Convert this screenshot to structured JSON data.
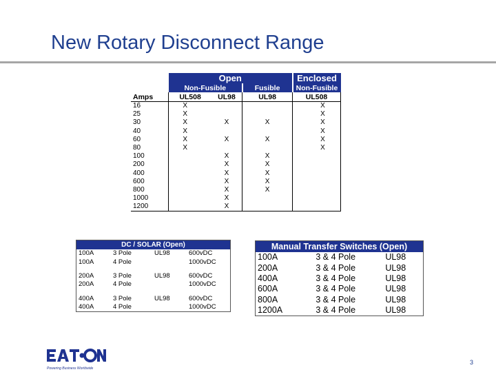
{
  "slide": {
    "title": "New Rotary Disconnect Range",
    "page_number": "3"
  },
  "main_table": {
    "header_open": "Open",
    "header_enclosed": "Enclosed",
    "sub_nonfusible": "Non-Fusible",
    "sub_fusible": "Fusible",
    "sub_enc_nonfusible": "Non-Fusible",
    "col_amps": "Amps",
    "col_ul508": "UL508",
    "col_ul98": "UL98",
    "col_fus_ul98": "UL98",
    "col_enc_ul508": "UL508",
    "rows": [
      {
        "amps": "16",
        "a": "X",
        "b": "",
        "c": "",
        "d": "X"
      },
      {
        "amps": "25",
        "a": "X",
        "b": "",
        "c": "",
        "d": "X"
      },
      {
        "amps": "30",
        "a": "X",
        "b": "X",
        "c": "X",
        "d": "X"
      },
      {
        "amps": "40",
        "a": "X",
        "b": "",
        "c": "",
        "d": "X"
      },
      {
        "amps": "60",
        "a": "X",
        "b": "X",
        "c": "X",
        "d": "X"
      },
      {
        "amps": "80",
        "a": "X",
        "b": "",
        "c": "",
        "d": "X"
      },
      {
        "amps": "100",
        "a": "",
        "b": "X",
        "c": "X",
        "d": ""
      },
      {
        "amps": "200",
        "a": "",
        "b": "X",
        "c": "X",
        "d": ""
      },
      {
        "amps": "400",
        "a": "",
        "b": "X",
        "c": "X",
        "d": ""
      },
      {
        "amps": "600",
        "a": "",
        "b": "X",
        "c": "X",
        "d": ""
      },
      {
        "amps": "800",
        "a": "",
        "b": "X",
        "c": "X",
        "d": ""
      },
      {
        "amps": "1000",
        "a": "",
        "b": "X",
        "c": "",
        "d": ""
      },
      {
        "amps": "1200",
        "a": "",
        "b": "X",
        "c": "",
        "d": ""
      }
    ]
  },
  "dc_table": {
    "header": "DC / SOLAR (Open)",
    "rows": [
      {
        "amp": "100A",
        "pole": "3 Pole",
        "ul": "UL98",
        "volt": "600vDC"
      },
      {
        "amp": "100A",
        "pole": "4 Pole",
        "ul": "",
        "volt": "1000vDC"
      },
      {
        "amp": "200A",
        "pole": "3 Pole",
        "ul": "UL98",
        "volt": "600vDC"
      },
      {
        "amp": "200A",
        "pole": "4 Pole",
        "ul": "",
        "volt": "1000vDC"
      },
      {
        "amp": "400A",
        "pole": "3 Pole",
        "ul": "UL98",
        "volt": "600vDC"
      },
      {
        "amp": "400A",
        "pole": "4 Pole",
        "ul": "",
        "volt": "1000vDC"
      }
    ]
  },
  "mts_table": {
    "header": "Manual Transfer Switches (Open)",
    "rows": [
      {
        "amp": "100A",
        "pole": "3 & 4 Pole",
        "ul": "UL98"
      },
      {
        "amp": "200A",
        "pole": "3 & 4 Pole",
        "ul": "UL98"
      },
      {
        "amp": "400A",
        "pole": "3 & 4 Pole",
        "ul": "UL98"
      },
      {
        "amp": "600A",
        "pole": "3 & 4 Pole",
        "ul": "UL98"
      },
      {
        "amp": "800A",
        "pole": "3 & 4 Pole",
        "ul": "UL98"
      },
      {
        "amp": "1200A",
        "pole": "3 & 4 Pole",
        "ul": "UL98"
      }
    ]
  },
  "logo": {
    "brand": "EAT·N",
    "tagline": "Powering Business Worldwide",
    "color": "#1f3391"
  }
}
